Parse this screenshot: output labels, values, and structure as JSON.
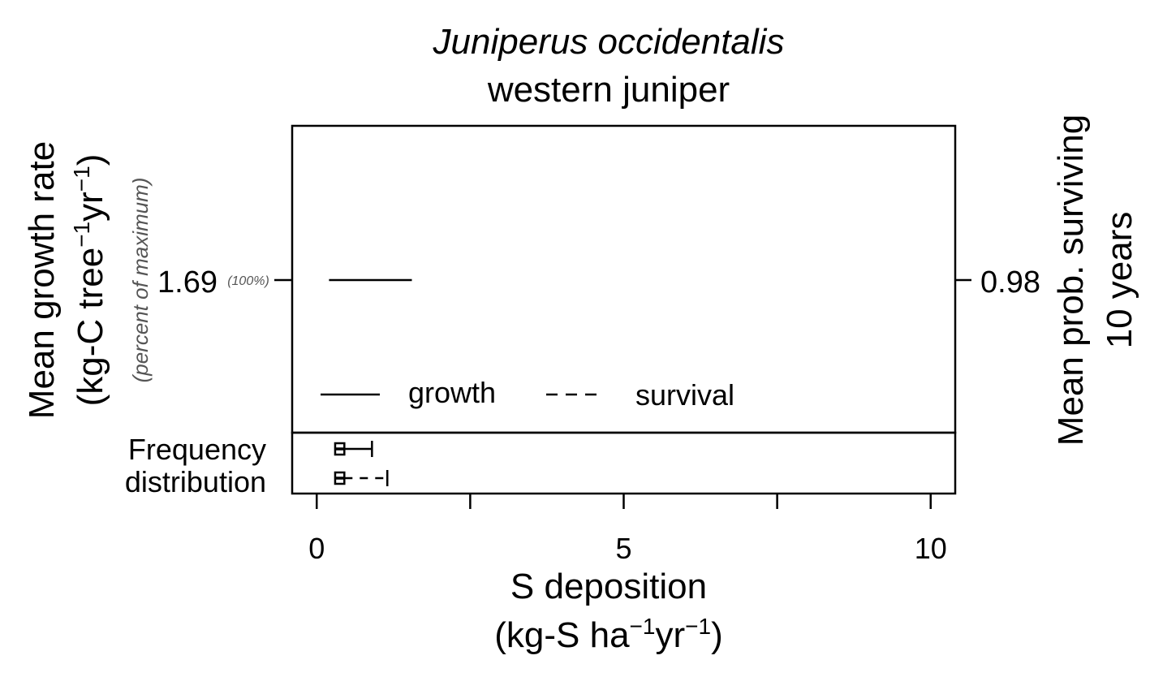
{
  "chart_data": {
    "type": "line",
    "title": "Juniperus occidentalis",
    "subtitle": "western juniper",
    "xlabel": "S deposition",
    "xlabel_units": {
      "base": "(kg-S ha",
      "sup1": "−1",
      "mid": "yr",
      "sup2": "−1",
      "end": ")"
    },
    "ylabel_left": "Mean growth rate",
    "ylabel_left_units": {
      "base": "(kg-C tree",
      "sup1": "−1",
      "mid": "yr",
      "sup2": "−1",
      "end": ")"
    },
    "ylabel_left_sub": "(percent of maximum)",
    "ylabel_right_line1": "Mean prob. surviving",
    "ylabel_right_line2": "10 years",
    "xlim": [
      -0.4,
      10.4
    ],
    "x_ticks": [
      0,
      2.5,
      5,
      7.5,
      10
    ],
    "x_tick_labels": [
      "0",
      "",
      "5",
      "",
      "10"
    ],
    "y_left_tick": {
      "label": "1.69",
      "pct": "(100%)"
    },
    "y_right_tick": {
      "label": "0.98"
    },
    "series": [
      {
        "name": "growth",
        "style": "solid",
        "x": [
          0.2,
          1.55
        ],
        "y": [
          1.69,
          1.69
        ]
      },
      {
        "name": "survival",
        "style": "dashed",
        "x": [],
        "y": []
      }
    ],
    "legend": {
      "position": "bottom-left",
      "items": [
        "growth",
        "survival"
      ]
    },
    "distribution": {
      "label_line1": "Frequency",
      "label_line2": "distribution",
      "boxes": [
        {
          "series": "growth",
          "whisker_style": "solid",
          "min": 0.28,
          "q1": 0.3,
          "median": 0.38,
          "q3": 0.45,
          "max": 0.9
        },
        {
          "series": "survival",
          "whisker_style": "dashed",
          "min": 0.28,
          "q1": 0.3,
          "median": 0.38,
          "q3": 0.45,
          "max": 1.15
        }
      ]
    }
  }
}
